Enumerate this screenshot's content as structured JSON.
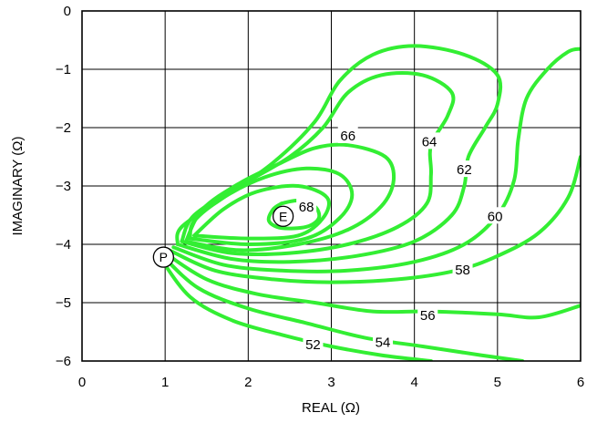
{
  "chart_data": {
    "type": "contour",
    "xlabel": "REAL (Ω)",
    "ylabel": "IMAGINARY (Ω)",
    "xlim": [
      0,
      6
    ],
    "ylim": [
      -6,
      0
    ],
    "x_ticks": [
      "0",
      "1",
      "2",
      "3",
      "4",
      "5",
      "6"
    ],
    "y_ticks": [
      "0",
      "−1",
      "−2",
      "−3",
      "−4",
      "−5",
      "−6"
    ],
    "grid": true,
    "line_color": "#33ee33",
    "contours": [
      {
        "level": "52",
        "label_at": [
          2.78,
          -5.72
        ],
        "points": [
          [
            0.95,
            -4.25
          ],
          [
            1.3,
            -4.9
          ],
          [
            1.8,
            -5.3
          ],
          [
            2.4,
            -5.55
          ],
          [
            3.0,
            -5.75
          ],
          [
            3.6,
            -5.9
          ],
          [
            4.2,
            -6.0
          ]
        ]
      },
      {
        "level": "54",
        "label_at": [
          3.62,
          -5.68
        ],
        "points": [
          [
            0.97,
            -4.2
          ],
          [
            1.4,
            -4.75
          ],
          [
            2.0,
            -5.1
          ],
          [
            2.7,
            -5.35
          ],
          [
            3.4,
            -5.6
          ],
          [
            4.1,
            -5.75
          ],
          [
            4.8,
            -5.9
          ],
          [
            5.3,
            -6.0
          ]
        ]
      },
      {
        "level": "56",
        "label_at": [
          4.16,
          -5.22
        ],
        "points": [
          [
            1.0,
            -4.15
          ],
          [
            1.5,
            -4.6
          ],
          [
            2.1,
            -4.85
          ],
          [
            2.8,
            -5.0
          ],
          [
            3.5,
            -5.15
          ],
          [
            4.2,
            -5.15
          ],
          [
            5.0,
            -5.2
          ],
          [
            5.5,
            -5.25
          ],
          [
            6.0,
            -5.05
          ]
        ]
      },
      {
        "level": "58",
        "label_at": [
          4.58,
          -4.44
        ],
        "points": [
          [
            1.05,
            -4.1
          ],
          [
            1.6,
            -4.45
          ],
          [
            2.3,
            -4.6
          ],
          [
            3.0,
            -4.65
          ],
          [
            3.8,
            -4.6
          ],
          [
            4.5,
            -4.45
          ],
          [
            5.0,
            -4.2
          ],
          [
            5.5,
            -3.8
          ],
          [
            5.85,
            -3.2
          ],
          [
            6.0,
            -2.5
          ]
        ]
      },
      {
        "level": "60",
        "label_at": [
          4.97,
          -3.52
        ],
        "points": [
          [
            1.1,
            -4.05
          ],
          [
            1.7,
            -4.35
          ],
          [
            2.4,
            -4.45
          ],
          [
            3.2,
            -4.45
          ],
          [
            4.0,
            -4.3
          ],
          [
            4.6,
            -4.0
          ],
          [
            5.0,
            -3.5
          ],
          [
            5.2,
            -2.9
          ],
          [
            5.25,
            -2.2
          ],
          [
            5.35,
            -1.5
          ],
          [
            5.6,
            -1.0
          ],
          [
            5.85,
            -0.7
          ],
          [
            6.0,
            -0.65
          ]
        ]
      },
      {
        "level": "62",
        "label_at": [
          4.6,
          -2.72
        ],
        "points": [
          [
            1.15,
            -4.0
          ],
          [
            1.8,
            -4.25
          ],
          [
            2.5,
            -4.3
          ],
          [
            3.3,
            -4.2
          ],
          [
            4.0,
            -3.95
          ],
          [
            4.45,
            -3.5
          ],
          [
            4.6,
            -3.0
          ],
          [
            4.65,
            -2.5
          ],
          [
            4.85,
            -2.0
          ],
          [
            5.0,
            -1.6
          ],
          [
            5.0,
            -1.1
          ],
          [
            4.6,
            -0.75
          ],
          [
            4.0,
            -0.6
          ],
          [
            3.5,
            -0.75
          ],
          [
            3.1,
            -1.2
          ],
          [
            2.8,
            -1.9
          ],
          [
            2.3,
            -2.6
          ],
          [
            1.7,
            -3.2
          ],
          [
            1.2,
            -3.7
          ],
          [
            1.15,
            -4.0
          ]
        ]
      },
      {
        "level": "64",
        "label_at": [
          4.18,
          -2.24
        ],
        "points": [
          [
            1.2,
            -3.95
          ],
          [
            1.8,
            -4.15
          ],
          [
            2.5,
            -4.15
          ],
          [
            3.2,
            -4.0
          ],
          [
            3.8,
            -3.7
          ],
          [
            4.15,
            -3.3
          ],
          [
            4.2,
            -2.8
          ],
          [
            4.2,
            -2.3
          ],
          [
            4.4,
            -1.8
          ],
          [
            4.45,
            -1.4
          ],
          [
            4.1,
            -1.1
          ],
          [
            3.6,
            -1.1
          ],
          [
            3.2,
            -1.4
          ],
          [
            2.9,
            -2.0
          ],
          [
            2.5,
            -2.5
          ],
          [
            1.9,
            -3.0
          ],
          [
            1.35,
            -3.5
          ],
          [
            1.2,
            -3.95
          ]
        ]
      },
      {
        "level": "66",
        "label_at": [
          3.2,
          -2.14
        ],
        "points": [
          [
            1.25,
            -3.95
          ],
          [
            1.9,
            -4.1
          ],
          [
            2.6,
            -4.0
          ],
          [
            3.2,
            -3.75
          ],
          [
            3.6,
            -3.35
          ],
          [
            3.75,
            -2.9
          ],
          [
            3.65,
            -2.5
          ],
          [
            3.2,
            -2.3
          ],
          [
            2.8,
            -2.35
          ],
          [
            2.4,
            -2.6
          ],
          [
            1.9,
            -2.95
          ],
          [
            1.45,
            -3.4
          ],
          [
            1.25,
            -3.95
          ]
        ]
      },
      {
        "level": "68",
        "label_at": [
          2.7,
          -3.36
        ],
        "points": [
          [
            2.4,
            -3.3
          ],
          [
            2.6,
            -3.25
          ],
          [
            2.8,
            -3.35
          ],
          [
            2.85,
            -3.55
          ],
          [
            2.7,
            -3.7
          ],
          [
            2.4,
            -3.72
          ],
          [
            2.25,
            -3.6
          ],
          [
            2.3,
            -3.4
          ],
          [
            2.4,
            -3.3
          ]
        ]
      },
      {
        "level": "",
        "label_at": null,
        "points": [
          [
            1.3,
            -3.9
          ],
          [
            2.0,
            -4.0
          ],
          [
            2.7,
            -3.9
          ],
          [
            3.1,
            -3.55
          ],
          [
            3.25,
            -3.15
          ],
          [
            3.1,
            -2.8
          ],
          [
            2.7,
            -2.7
          ],
          [
            2.2,
            -2.85
          ],
          [
            1.7,
            -3.2
          ],
          [
            1.35,
            -3.6
          ],
          [
            1.3,
            -3.9
          ]
        ]
      },
      {
        "level": "",
        "label_at": null,
        "points": [
          [
            1.35,
            -3.85
          ],
          [
            2.0,
            -3.9
          ],
          [
            2.6,
            -3.85
          ],
          [
            2.9,
            -3.55
          ],
          [
            2.95,
            -3.2
          ],
          [
            2.6,
            -3.0
          ],
          [
            2.1,
            -3.1
          ],
          [
            1.7,
            -3.4
          ],
          [
            1.35,
            -3.85
          ]
        ]
      }
    ],
    "markers": [
      {
        "text": "P",
        "at": [
          0.98,
          -4.22
        ]
      },
      {
        "text": "E",
        "at": [
          2.42,
          -3.52
        ]
      }
    ]
  }
}
